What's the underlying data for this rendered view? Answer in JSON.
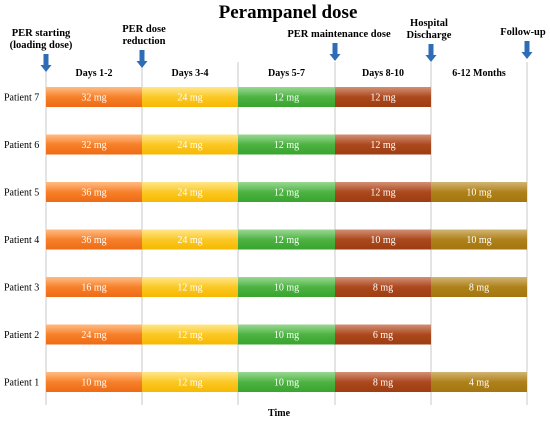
{
  "chart_data": {
    "type": "gantt",
    "title": "Perampanel dose",
    "xlabel": "Time",
    "phases": [
      "Days 1-2",
      "Days 3-4",
      "Days 5-7",
      "Days 8-10",
      "6-12 Months"
    ],
    "milestones": [
      {
        "label": [
          "PER starting",
          "(loading dose)"
        ],
        "phase_boundary": 0
      },
      {
        "label": [
          "PER dose",
          "reduction"
        ],
        "phase_boundary": 1
      },
      {
        "label": [
          "PER maintenance dose"
        ],
        "phase_boundary": 3
      },
      {
        "label": [
          "Hospital",
          "Discharge"
        ],
        "phase_boundary": 4
      },
      {
        "label": [
          "Follow-up"
        ],
        "phase_boundary": 5
      }
    ],
    "phase_colors": {
      "top": [
        "#ff9640",
        "#ffd84a",
        "#62c257",
        "#b9542a",
        "#b88c26"
      ],
      "bottom": [
        "#ee6b14",
        "#f7b800",
        "#38a42e",
        "#9e3d11",
        "#a57610"
      ]
    },
    "series": [
      {
        "name": "Patient 7",
        "values": [
          "32 mg",
          "24 mg",
          "12 mg",
          "12 mg",
          null
        ]
      },
      {
        "name": "Patient 6",
        "values": [
          "32 mg",
          "24 mg",
          "12 mg",
          "12 mg",
          null
        ]
      },
      {
        "name": "Patient 5",
        "values": [
          "36 mg",
          "24 mg",
          "12 mg",
          "12 mg",
          "10 mg"
        ]
      },
      {
        "name": "Patient 4",
        "values": [
          "36 mg",
          "24 mg",
          "12 mg",
          "10 mg",
          "10 mg"
        ]
      },
      {
        "name": "Patient 3",
        "values": [
          "16 mg",
          "12 mg",
          "10 mg",
          "8 mg",
          "8 mg"
        ]
      },
      {
        "name": "Patient 2",
        "values": [
          "24 mg",
          "12 mg",
          "10 mg",
          "6 mg",
          null
        ]
      },
      {
        "name": "Patient 1",
        "values": [
          "10 mg",
          "12 mg",
          "10 mg",
          "8 mg",
          "4 mg"
        ]
      }
    ],
    "milestone_arrow_color": "#2e6db5",
    "gridline_color": "#c8c8c8"
  }
}
